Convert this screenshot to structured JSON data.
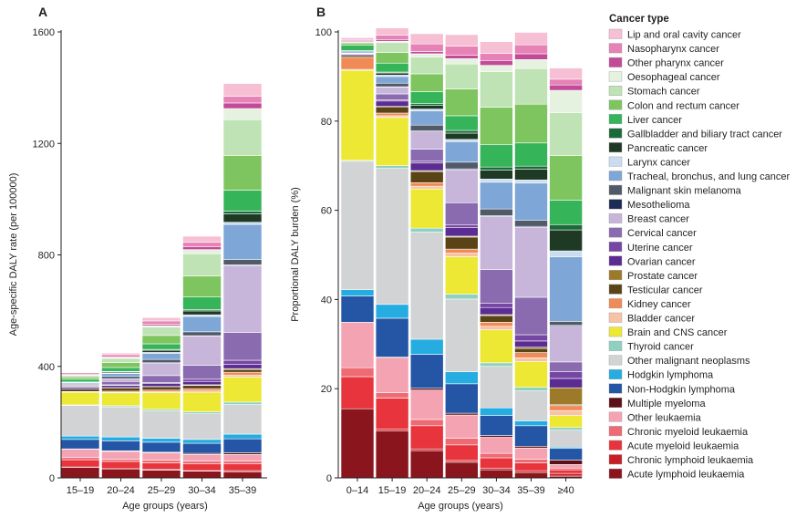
{
  "chart_data": [
    {
      "panel": "A",
      "type": "stacked-bar",
      "xlabel": "Age groups (years)",
      "ylabel": "Age-specific DALY rate (per 100000)",
      "ylim": [
        0,
        1600
      ],
      "yticks": [
        0,
        400,
        800,
        1200,
        1600
      ],
      "categories": [
        "15–19",
        "20–24",
        "25–29",
        "30–34",
        "35–39"
      ],
      "series": [
        {
          "name": "Acute lymphoid leukaemia",
          "values": [
            38,
            32,
            28,
            24,
            22
          ]
        },
        {
          "name": "Chronic lymphoid leukaemia",
          "values": [
            1,
            1,
            2,
            2,
            4
          ]
        },
        {
          "name": "Acute myeloid leukaemia",
          "values": [
            26,
            26,
            24,
            24,
            24
          ]
        },
        {
          "name": "Chronic myeloid leukaemia",
          "values": [
            8,
            8,
            10,
            10,
            10
          ]
        },
        {
          "name": "Other leukaemia",
          "values": [
            30,
            28,
            26,
            24,
            24
          ]
        },
        {
          "name": "Multiple myeloma",
          "values": [
            1,
            2,
            2,
            4,
            6
          ]
        },
        {
          "name": "Non-Hodgkin lymphoma",
          "values": [
            34,
            36,
            36,
            36,
            50
          ]
        },
        {
          "name": "Hodgkin lymphoma",
          "values": [
            12,
            14,
            14,
            14,
            17
          ]
        },
        {
          "name": "Other malignant neoplasms",
          "values": [
            110,
            108,
            98,
            92,
            106
          ]
        },
        {
          "name": "Thyroid cancer",
          "values": [
            2,
            4,
            6,
            7,
            9
          ]
        },
        {
          "name": "Brain and CNS cancer",
          "values": [
            45,
            46,
            60,
            70,
            90
          ]
        },
        {
          "name": "Bladder cancer",
          "values": [
            1,
            2,
            3,
            5,
            7
          ]
        },
        {
          "name": "Kidney cancer",
          "values": [
            2,
            4,
            6,
            8,
            10
          ]
        },
        {
          "name": "Testicular cancer",
          "values": [
            9,
            12,
            12,
            12,
            10
          ]
        },
        {
          "name": "Prostate cancer",
          "values": [
            0,
            1,
            1,
            2,
            3
          ]
        },
        {
          "name": "Ovarian cancer",
          "values": [
            6,
            8,
            10,
            12,
            16
          ]
        },
        {
          "name": "Uterine cancer",
          "values": [
            1,
            2,
            4,
            8,
            14
          ]
        },
        {
          "name": "Cervical cancer",
          "values": [
            4,
            12,
            25,
            50,
            100
          ]
        },
        {
          "name": "Breast cancer",
          "values": [
            2,
            10,
            45,
            105,
            240
          ]
        },
        {
          "name": "Mesothelioma",
          "values": [
            0,
            0,
            1,
            1,
            2
          ]
        },
        {
          "name": "Malignant skin melanoma",
          "values": [
            4,
            8,
            12,
            14,
            20
          ]
        },
        {
          "name": "Tracheal, bronchus, and lung cancer",
          "values": [
            4,
            10,
            22,
            55,
            125
          ]
        },
        {
          "name": "Larynx cancer",
          "values": [
            1,
            2,
            3,
            6,
            8
          ]
        },
        {
          "name": "Pancreatic cancer",
          "values": [
            2,
            4,
            8,
            14,
            30
          ]
        },
        {
          "name": "Gallbladder and biliary tract cancer",
          "values": [
            1,
            2,
            3,
            5,
            10
          ]
        },
        {
          "name": "Liver cancer",
          "values": [
            10,
            14,
            20,
            45,
            75
          ]
        },
        {
          "name": "Colon and rectum cancer",
          "values": [
            8,
            18,
            30,
            75,
            125
          ]
        },
        {
          "name": "Stomach cancer",
          "values": [
            6,
            15,
            30,
            80,
            128
          ]
        },
        {
          "name": "Oesophageal cancer",
          "values": [
            1,
            2,
            5,
            15,
            40
          ]
        },
        {
          "name": "Other pharynx cancer",
          "values": [
            2,
            3,
            5,
            10,
            20
          ]
        },
        {
          "name": "Nasopharynx cancer",
          "values": [
            6,
            8,
            12,
            16,
            24
          ]
        },
        {
          "name": "Lip and oral cavity cancer",
          "values": [
            2,
            6,
            12,
            22,
            46
          ]
        }
      ]
    },
    {
      "panel": "B",
      "type": "stacked-bar",
      "xlabel": "Age groups (years)",
      "ylabel": "Proportional DALY burden (%)",
      "ylim": [
        0,
        100
      ],
      "yticks": [
        0,
        20,
        40,
        60,
        80,
        100
      ],
      "categories": [
        "0–14",
        "15–19",
        "20–24",
        "25–29",
        "30–34",
        "35–39",
        "≥40"
      ],
      "series": [
        {
          "name": "Acute lymphoid leukaemia",
          "values": [
            15.5,
            10.5,
            6.1,
            3.5,
            1.8,
            1.2,
            0.4
          ]
        },
        {
          "name": "Chronic lymphoid leukaemia",
          "values": [
            0.0,
            0.4,
            0.4,
            0.4,
            0.4,
            0.4,
            0.6
          ]
        },
        {
          "name": "Acute myeloid leukaemia",
          "values": [
            7.2,
            7.0,
            5.2,
            3.5,
            2.3,
            1.8,
            0.8
          ]
        },
        {
          "name": "Chronic myeloid leukaemia",
          "values": [
            2.0,
            1.2,
            1.4,
            1.5,
            1.0,
            0.8,
            0.4
          ]
        },
        {
          "name": "Other leukaemia",
          "values": [
            10.2,
            7.8,
            6.6,
            5.2,
            3.6,
            2.5,
            0.8
          ]
        },
        {
          "name": "Multiple myeloma",
          "values": [
            0.0,
            0.2,
            0.4,
            0.4,
            0.4,
            0.4,
            1.0
          ]
        },
        {
          "name": "Non-Hodgkin lymphoma",
          "values": [
            5.9,
            8.7,
            7.6,
            6.6,
            4.5,
            4.6,
            2.6
          ]
        },
        {
          "name": "Hodgkin lymphoma",
          "values": [
            1.4,
            3.1,
            3.4,
            2.7,
            1.7,
            1.1,
            0.3
          ]
        },
        {
          "name": "Other malignant neoplasms",
          "values": [
            28.8,
            30.5,
            24.0,
            16.3,
            9.3,
            6.7,
            3.8
          ]
        },
        {
          "name": "Thyroid cancer",
          "values": [
            0.2,
            0.6,
            0.9,
            1.1,
            0.8,
            0.8,
            0.6
          ]
        },
        {
          "name": "Brain and CNS cancer",
          "values": [
            20.2,
            10.8,
            8.8,
            8.4,
            7.4,
            5.8,
            2.7
          ]
        },
        {
          "name": "Bladder cancer",
          "values": [
            0.2,
            0.4,
            0.6,
            0.8,
            0.8,
            0.8,
            1.1
          ]
        },
        {
          "name": "Kidney cancer",
          "values": [
            2.7,
            0.6,
            0.8,
            0.9,
            0.9,
            1.2,
            1.1
          ]
        },
        {
          "name": "Testicular cancer",
          "values": [
            0.4,
            1.4,
            2.5,
            2.7,
            1.5,
            0.9,
            0.2
          ]
        },
        {
          "name": "Prostate cancer",
          "values": [
            0.0,
            0.1,
            0.2,
            0.2,
            0.2,
            0.3,
            3.8
          ]
        },
        {
          "name": "Ovarian cancer",
          "values": [
            0.3,
            1.2,
            1.7,
            1.9,
            1.6,
            1.4,
            2.1
          ]
        },
        {
          "name": "Uterine cancer",
          "values": [
            0.0,
            0.3,
            0.4,
            0.6,
            1.0,
            1.4,
            1.5
          ]
        },
        {
          "name": "Cervical cancer",
          "values": [
            0.1,
            1.3,
            2.7,
            5.0,
            7.5,
            8.4,
            2.2
          ]
        },
        {
          "name": "Breast cancer",
          "values": [
            0.1,
            1.5,
            3.9,
            7.4,
            11.9,
            15.7,
            8.0
          ]
        },
        {
          "name": "Mesothelioma",
          "values": [
            0.0,
            0.1,
            0.2,
            0.2,
            0.2,
            0.2,
            0.2
          ]
        },
        {
          "name": "Malignant skin melanoma",
          "values": [
            0.1,
            0.8,
            1.3,
            1.5,
            1.5,
            1.4,
            0.9
          ]
        },
        {
          "name": "Tracheal, bronchus, and lung cancer",
          "values": [
            0.4,
            1.5,
            3.2,
            4.6,
            6.0,
            8.3,
            14.5
          ]
        },
        {
          "name": "Larynx cancer",
          "values": [
            0.0,
            0.3,
            0.4,
            0.5,
            0.7,
            0.7,
            1.3
          ]
        },
        {
          "name": "Pancreatic cancer",
          "values": [
            0.1,
            0.5,
            0.8,
            1.4,
            2.0,
            2.4,
            4.7
          ]
        },
        {
          "name": "Gallbladder and biliary tract cancer",
          "values": [
            0.0,
            0.2,
            0.4,
            0.6,
            0.7,
            0.7,
            1.2
          ]
        },
        {
          "name": "Liver cancer",
          "values": [
            1.2,
            2.0,
            2.7,
            3.3,
            5.0,
            5.2,
            5.5
          ]
        },
        {
          "name": "Colon and rectum cancer",
          "values": [
            0.5,
            2.4,
            4.0,
            6.0,
            8.4,
            8.7,
            10.0
          ]
        },
        {
          "name": "Stomach cancer",
          "values": [
            0.2,
            2.2,
            3.8,
            5.6,
            8.0,
            8.0,
            9.6
          ]
        },
        {
          "name": "Oesophageal cancer",
          "values": [
            0.1,
            0.3,
            0.7,
            1.2,
            1.4,
            2.0,
            5.0
          ]
        },
        {
          "name": "Other pharynx cancer",
          "values": [
            0.2,
            0.4,
            0.5,
            0.8,
            1.1,
            1.3,
            1.2
          ]
        },
        {
          "name": "Nasopharynx cancer",
          "values": [
            0.3,
            1.0,
            1.7,
            2.0,
            1.6,
            2.0,
            1.3
          ]
        },
        {
          "name": "Lip and oral cavity cancer",
          "values": [
            0.4,
            1.6,
            2.3,
            2.6,
            2.6,
            2.8,
            2.5
          ]
        }
      ]
    }
  ],
  "legend": {
    "title": "Cancer type",
    "items": [
      {
        "label": "Lip and oral cavity cancer",
        "color": "#f6bfd3"
      },
      {
        "label": "Nasopharynx cancer",
        "color": "#e682b6"
      },
      {
        "label": "Other pharynx cancer",
        "color": "#c24a98"
      },
      {
        "label": "Oesophageal cancer",
        "color": "#e5f2e0"
      },
      {
        "label": "Stomach cancer",
        "color": "#bfe3b4"
      },
      {
        "label": "Colon and rectum cancer",
        "color": "#7fc55f"
      },
      {
        "label": "Liver cancer",
        "color": "#35b45a"
      },
      {
        "label": "Gallbladder and biliary tract cancer",
        "color": "#1b6b3a"
      },
      {
        "label": "Pancreatic cancer",
        "color": "#1e3a24"
      },
      {
        "label": "Larynx cancer",
        "color": "#c9dcf0"
      },
      {
        "label": "Tracheal, bronchus, and lung cancer",
        "color": "#7ea6d6"
      },
      {
        "label": "Malignant skin melanoma",
        "color": "#505a69"
      },
      {
        "label": "Mesothelioma",
        "color": "#1d2b57"
      },
      {
        "label": "Breast cancer",
        "color": "#c8b6da"
      },
      {
        "label": "Cervical cancer",
        "color": "#8a6bb0"
      },
      {
        "label": "Uterine cancer",
        "color": "#7546a3"
      },
      {
        "label": "Ovarian cancer",
        "color": "#5b2c91"
      },
      {
        "label": "Prostate cancer",
        "color": "#9c7a2a"
      },
      {
        "label": "Testicular cancer",
        "color": "#5a4416"
      },
      {
        "label": "Kidney cancer",
        "color": "#f08a56"
      },
      {
        "label": "Bladder cancer",
        "color": "#f7c3a4"
      },
      {
        "label": "Brain and CNS cancer",
        "color": "#ece834"
      },
      {
        "label": "Thyroid cancer",
        "color": "#8fd1c0"
      },
      {
        "label": "Other malignant neoplasms",
        "color": "#d2d3d4"
      },
      {
        "label": "Hodgkin lymphoma",
        "color": "#25ade2"
      },
      {
        "label": "Non-Hodgkin lymphoma",
        "color": "#2456a5"
      },
      {
        "label": "Multiple myeloma",
        "color": "#5c0f16"
      },
      {
        "label": "Other leukaemia",
        "color": "#f4a3b2"
      },
      {
        "label": "Chronic myeloid leukaemia",
        "color": "#ee6b74"
      },
      {
        "label": "Acute myeloid leukaemia",
        "color": "#e8343c"
      },
      {
        "label": "Chronic lymphoid leukaemia",
        "color": "#c61f26"
      },
      {
        "label": "Acute lymphoid leukaemia",
        "color": "#8b151d"
      }
    ]
  },
  "colors": {
    "axis": "#231f20",
    "separator": "#ffffff",
    "background": "#ffffff"
  }
}
